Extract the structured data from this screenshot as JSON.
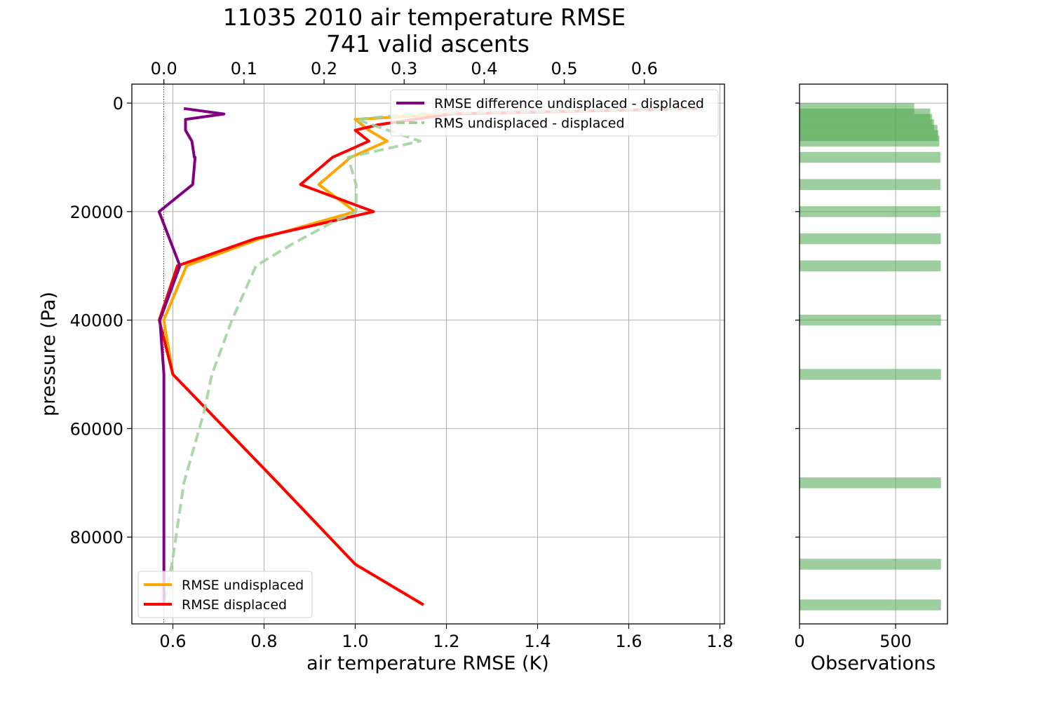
{
  "chart_data": [
    {
      "type": "line",
      "title": "11035 2010 air temperature RMSE",
      "subtitle": "741 valid ascents",
      "xlabel": "air temperature RMSE (K)",
      "ylabel": "pressure (Pa)",
      "xlim": [
        0.51,
        1.81
      ],
      "ylim": [
        96000,
        -3500
      ],
      "y_inverted": true,
      "xticks": [
        "0.6",
        "0.8",
        "1.0",
        "1.2",
        "1.4",
        "1.6",
        "1.8"
      ],
      "xtick_values": [
        0.6,
        0.8,
        1.0,
        1.2,
        1.4,
        1.6,
        1.8
      ],
      "yticks": [
        "0",
        "20000",
        "40000",
        "60000",
        "80000"
      ],
      "ytick_values": [
        0,
        20000,
        40000,
        60000,
        80000
      ],
      "grid": true,
      "series": [
        {
          "name": "RMSE undisplaced",
          "color": "#ffa500",
          "style": "solid",
          "axis": "bottom",
          "x": [
            1.74,
            1.2,
            1.0,
            1.03,
            1.07,
            0.99,
            0.92,
            1.0,
            0.79,
            0.63,
            0.58,
            0.6,
            0.6,
            0.83,
            1.0,
            1.15
          ],
          "y": [
            1000,
            2000,
            3000,
            5000,
            7000,
            10000,
            15000,
            20000,
            25000,
            30000,
            40000,
            50000,
            50000,
            70000,
            85000,
            92500
          ]
        },
        {
          "name": "RMSE displaced",
          "color": "#ff0000",
          "style": "solid",
          "axis": "bottom",
          "x": [
            1.75,
            1.21,
            1.05,
            1.0,
            1.03,
            0.95,
            0.88,
            1.04,
            0.78,
            0.61,
            0.57,
            0.6,
            0.83,
            1.0,
            1.15
          ],
          "y": [
            1000,
            2000,
            4000,
            5000,
            7000,
            10000,
            15000,
            20000,
            25000,
            30000,
            40000,
            50000,
            70000,
            85000,
            92500
          ]
        },
        {
          "name": "RMS undisplaced - displaced",
          "color": "#9dd19a",
          "style": "dashed",
          "axis": "top",
          "x": [
            0.66,
            0.31,
            0.24,
            0.32,
            0.23,
            0.24,
            0.24,
            0.21,
            0.16,
            0.115,
            0.085,
            0.06,
            0.05,
            0.025,
            0.01,
            0.0
          ],
          "y": [
            1000,
            2000,
            3000,
            7000,
            10000,
            15000,
            20000,
            22000,
            26000,
            30000,
            40000,
            50000,
            57000,
            70000,
            85000,
            92500
          ]
        },
        {
          "name": "RMSE difference undisplaced - displaced",
          "color": "#800080",
          "style": "solid",
          "axis": "top",
          "x": [
            0.025,
            0.075,
            0.027,
            0.027,
            0.035,
            0.038,
            0.039,
            0.036,
            -0.006,
            0.02,
            -0.005,
            0.0,
            0.0,
            0.0,
            0.0,
            0.0
          ],
          "y": [
            1000,
            2000,
            3000,
            5000,
            7000,
            10000,
            10000,
            15000,
            20000,
            30000,
            40000,
            50000,
            60000,
            70000,
            85000,
            92500
          ]
        }
      ],
      "top_axis": {
        "xlim": [
          -0.04,
          0.7
        ],
        "xticks": [
          "0.0",
          "0.1",
          "0.2",
          "0.3",
          "0.4",
          "0.5",
          "0.6"
        ],
        "xtick_values": [
          0.0,
          0.1,
          0.2,
          0.3,
          0.4,
          0.5,
          0.6
        ]
      },
      "reference_line": {
        "axis": "top",
        "x": 0.0,
        "style": "dotted"
      },
      "legends": [
        {
          "placement": "upper right",
          "entries": [
            "RMSE difference undisplaced - displaced",
            "RMS undisplaced - displaced"
          ]
        },
        {
          "placement": "lower left",
          "entries": [
            "RMSE undisplaced",
            "RMSE displaced"
          ]
        }
      ]
    },
    {
      "type": "bar",
      "orientation": "horizontal",
      "xlabel": "Observations",
      "xlim": [
        0,
        770
      ],
      "xticks": [
        "0",
        "500"
      ],
      "xtick_values": [
        0,
        500
      ],
      "shares_y_with_main": true,
      "grid": true,
      "bar_color": "#4ca64c",
      "bar_alpha": 0.55,
      "bar_half_height_pa": 1000,
      "bars": [
        {
          "pressure": 1000,
          "count": 597
        },
        {
          "pressure": 2000,
          "count": 680
        },
        {
          "pressure": 3000,
          "count": 690
        },
        {
          "pressure": 4000,
          "count": 700
        },
        {
          "pressure": 5000,
          "count": 718
        },
        {
          "pressure": 6000,
          "count": 722
        },
        {
          "pressure": 7000,
          "count": 728
        },
        {
          "pressure": 10000,
          "count": 733
        },
        {
          "pressure": 15000,
          "count": 733
        },
        {
          "pressure": 20000,
          "count": 733
        },
        {
          "pressure": 25000,
          "count": 735
        },
        {
          "pressure": 30000,
          "count": 735
        },
        {
          "pressure": 40000,
          "count": 736
        },
        {
          "pressure": 50000,
          "count": 736
        },
        {
          "pressure": 70000,
          "count": 736
        },
        {
          "pressure": 85000,
          "count": 736
        },
        {
          "pressure": 92500,
          "count": 736
        }
      ]
    }
  ]
}
